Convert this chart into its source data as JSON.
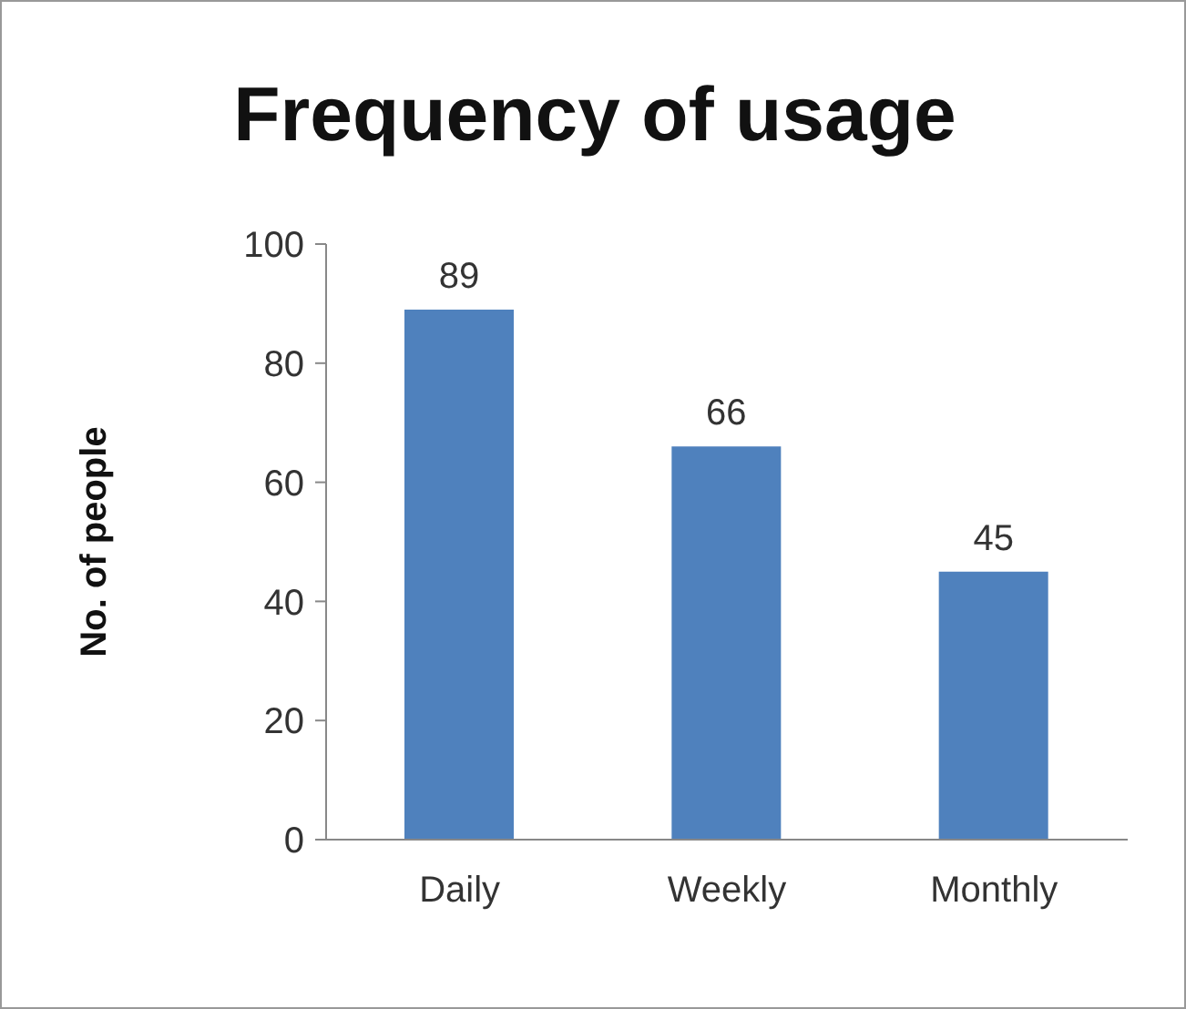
{
  "chart_data": {
    "type": "bar",
    "title": "Frequency of usage",
    "ylabel": "No. of people",
    "categories": [
      "Daily",
      "Weekly",
      "Monthly"
    ],
    "values": [
      89,
      66,
      45
    ],
    "color": "#4f81bd",
    "ylim": [
      0,
      100
    ],
    "yticks": [
      0,
      20,
      40,
      60,
      80,
      100
    ],
    "grid": false,
    "data_labels": true
  }
}
